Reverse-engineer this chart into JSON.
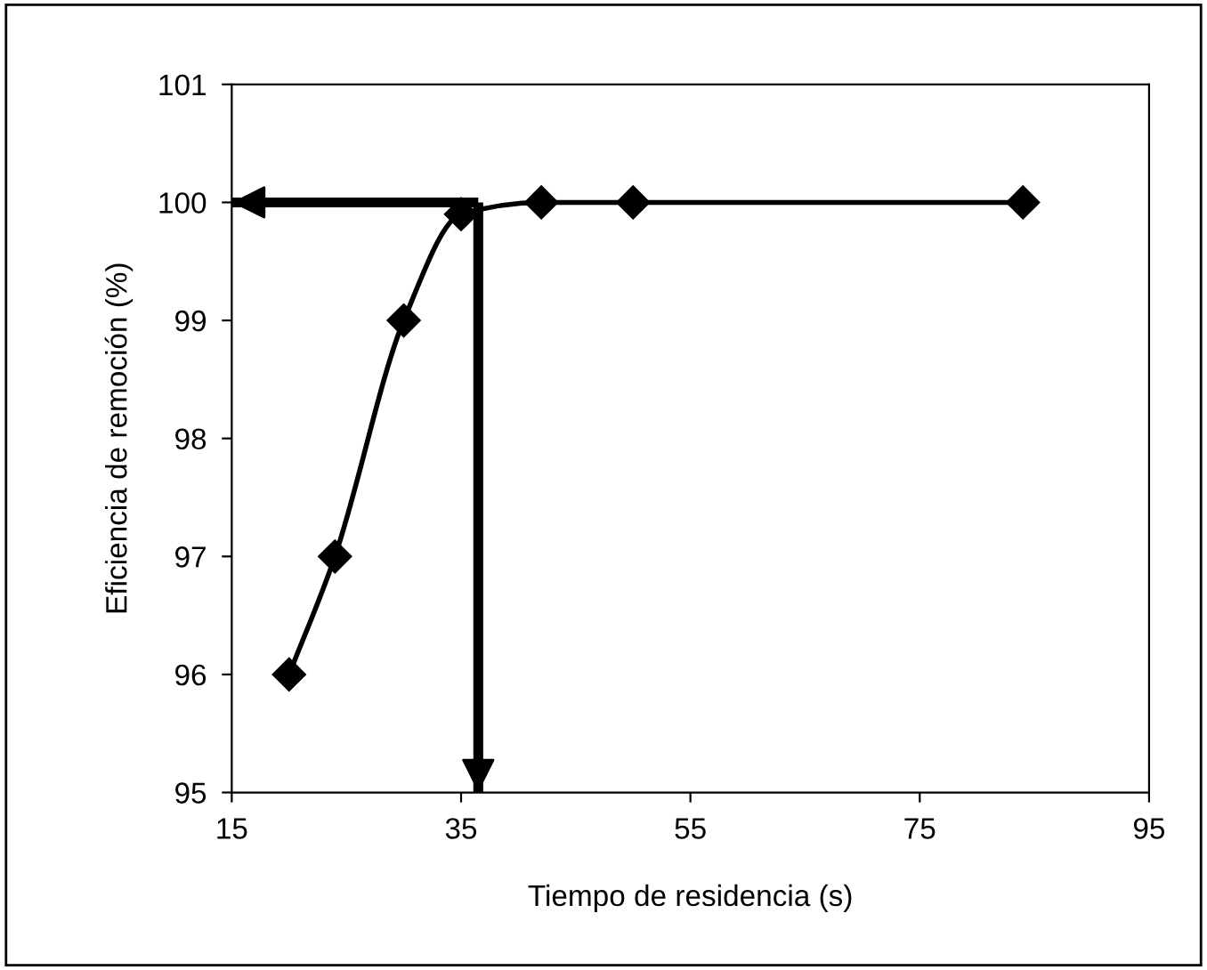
{
  "chart_data": {
    "type": "line",
    "xlabel": "Tiempo de residencia (s)",
    "ylabel": "Eficiencia de remoción (%)",
    "x": [
      20,
      24,
      30,
      35,
      42,
      50,
      84
    ],
    "series": [
      {
        "color": "#000000",
        "values": [
          96,
          97,
          99,
          99.9,
          100,
          100,
          100
        ]
      }
    ],
    "marker": "diamond",
    "line_style": "solid",
    "grid": false,
    "legend": false,
    "xlim": [
      15,
      95
    ],
    "xticks": [
      15,
      35,
      55,
      75,
      95
    ],
    "ylim": [
      95,
      101
    ],
    "yticks": [
      95,
      96,
      97,
      98,
      99,
      100,
      101
    ],
    "ref_lines": [
      {
        "axis": "x",
        "value": 36.5,
        "color": "#000000"
      },
      {
        "axis": "y",
        "value": 100,
        "color": "#000000"
      }
    ]
  }
}
